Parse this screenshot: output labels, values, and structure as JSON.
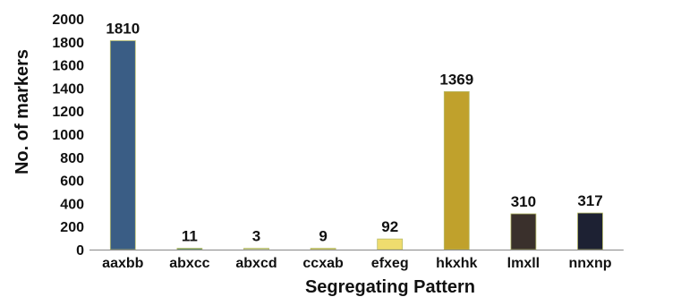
{
  "chart_data": {
    "type": "bar",
    "title": "",
    "xlabel": "Segregating Pattern",
    "ylabel": "No. of markers",
    "ylim": [
      0,
      2000
    ],
    "yticks": [
      0,
      200,
      400,
      600,
      800,
      1000,
      1200,
      1400,
      1600,
      1800,
      2000
    ],
    "grid": false,
    "legend": "none",
    "categories": [
      "aaxbb",
      "abxcc",
      "abxcd",
      "ccxab",
      "efxeg",
      "hkxhk",
      "lmxll",
      "nnxnp"
    ],
    "values": [
      1810,
      11,
      3,
      9,
      92,
      1369,
      310,
      317
    ],
    "data_labels": [
      "1810",
      "11",
      "3",
      "9",
      "92",
      "1369",
      "310",
      "317"
    ],
    "colors": [
      "#3a5d85",
      "#4d8a7a",
      "#cfd9b0",
      "#d9d27a",
      "#efdc6e",
      "#c0a12c",
      "#3a302c",
      "#1d2133"
    ]
  }
}
